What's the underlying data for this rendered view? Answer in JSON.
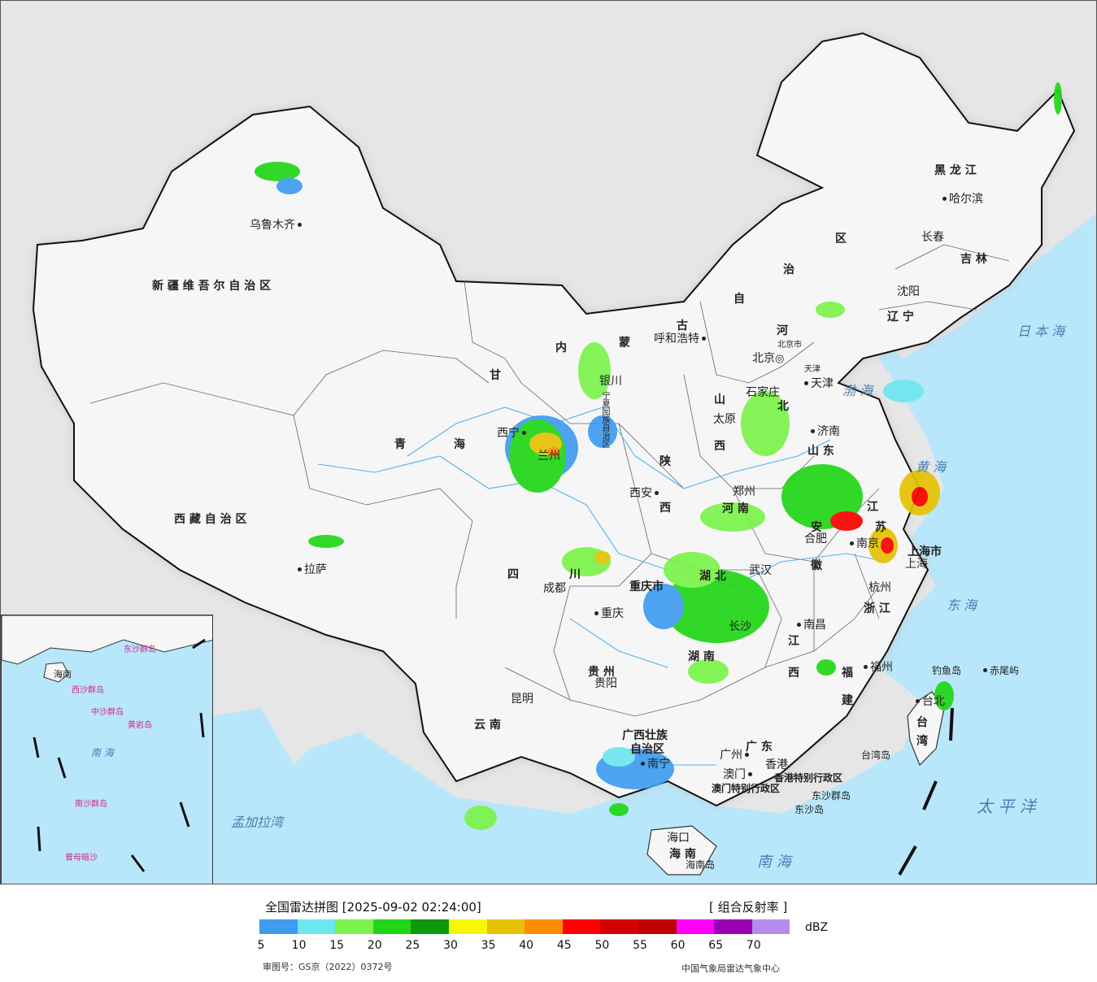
{
  "title": "全国雷达拼图 [2025-09-02 02:24:00]",
  "product": "[ 组合反射率 ]",
  "unit": "dBZ",
  "approval_number": "审图号：GS京（2022）0372号",
  "agency": "中国气象局雷达气象中心",
  "legend": {
    "ticks": [
      "5",
      "10",
      "15",
      "20",
      "25",
      "30",
      "35",
      "40",
      "45",
      "50",
      "55",
      "60",
      "65",
      "70"
    ],
    "colors": [
      "#3f9cf0",
      "#6ee6ee",
      "#7bf34a",
      "#21d617",
      "#0c9a0c",
      "#f7f70a",
      "#e4c205",
      "#ff8c00",
      "#ff0000",
      "#d50000",
      "#c00000",
      "#ff00ff",
      "#9a00b4",
      "#b58cee"
    ]
  },
  "provinces": {
    "xinjiang": "新 疆 维 吾 尔 自 治 区",
    "xizang": "西 藏 自 治 区",
    "qinghai_1": "青",
    "qinghai_2": "海",
    "gansu": "甘",
    "neimenggu_1": "内",
    "neimenggu_2": "蒙",
    "neimenggu_3": "古",
    "neimenggu_4": "自",
    "neimenggu_5": "治",
    "neimenggu_6": "区",
    "heilongjiang": "黑 龙 江",
    "jilin": "吉 林",
    "liaoning": "辽 宁",
    "hebei_1": "河",
    "hebei_2": "北",
    "shanxi_1": "山",
    "shanxi_2": "西",
    "shandong": "山 东",
    "henan": "河 南",
    "shaanxi_1": "陕",
    "shaanxi_2": "西",
    "sichuan": "四",
    "chuan": "川",
    "hubei": "湖 北",
    "hunan": "湖 南",
    "anhui_1": "安",
    "anhui_2": "徽",
    "jiangsu_1": "江",
    "jiangsu_2": "苏",
    "zhejiang": "浙 江",
    "jiangxi_1": "江",
    "jiangxi_2": "西",
    "fujian_1": "福",
    "fujian_2": "建",
    "guizhou": "贵 州",
    "yunnan": "云 南",
    "guangxi_1": "广西壮族",
    "guangxi_2": "自治区",
    "guangdong": "广 东",
    "hainan": "海 南",
    "taiwan_1": "台",
    "taiwan_2": "湾",
    "chongqing": "重庆市",
    "shanghai": "上海市",
    "hongkong": "香港特别行政区",
    "macau": "澳门特别行政区"
  },
  "cities": {
    "urumqi": "乌鲁木齐",
    "lhasa": "拉萨",
    "xining": "西宁",
    "lanzhou": "兰州",
    "yinchuan": "银川",
    "hohhot": "呼和浩特",
    "beijing": "北京",
    "beijing_city": "北京市",
    "tianjin": "天津",
    "tianjin_city": "天津",
    "shijiazhuang": "石家庄",
    "taiyuan": "太原",
    "jinan": "济南",
    "zhengzhou": "郑州",
    "xian": "西安",
    "chengdu": "成都",
    "chongqing": "重庆",
    "wuhan": "武汉",
    "changsha": "长沙",
    "hefei": "合肥",
    "nanjing": "南京",
    "shanghai": "上海",
    "hangzhou": "杭州",
    "nanchang": "南昌",
    "fuzhou": "福州",
    "taipei": "台北",
    "guiyang": "贵阳",
    "kunming": "昆明",
    "nanning": "南宁",
    "guangzhou": "广州",
    "hongkong": "香港",
    "macau": "澳门",
    "haikou": "海口",
    "harbin": "哈尔滨",
    "changchun": "长春",
    "shenyang": "沈阳",
    "ningxia": "宁夏回族自治区"
  },
  "islands": {
    "diaoyu": "钓鱼岛",
    "chiwei": "赤尾屿",
    "taiwan_island": "台湾岛",
    "dongsha_islands": "东沙群岛",
    "dongsha_island": "东沙岛",
    "hainan_island": "海南岛"
  },
  "seas": {
    "japan_sea": "日 本 海",
    "bohai": "渤 海",
    "yellow_sea": "黄 海",
    "east_sea": "东 海",
    "pacific": "太 平 洋",
    "south_sea": "南 海",
    "bengal": "孟加拉湾"
  },
  "inset": {
    "south_sea": "南 海",
    "hainan": "海南",
    "xisha": "西沙群岛",
    "zhongsha": "中沙群岛",
    "huangyan": "黄岩岛",
    "nansha": "南沙群岛",
    "dongsha": "东沙群岛",
    "zengmu": "曾母暗沙"
  }
}
